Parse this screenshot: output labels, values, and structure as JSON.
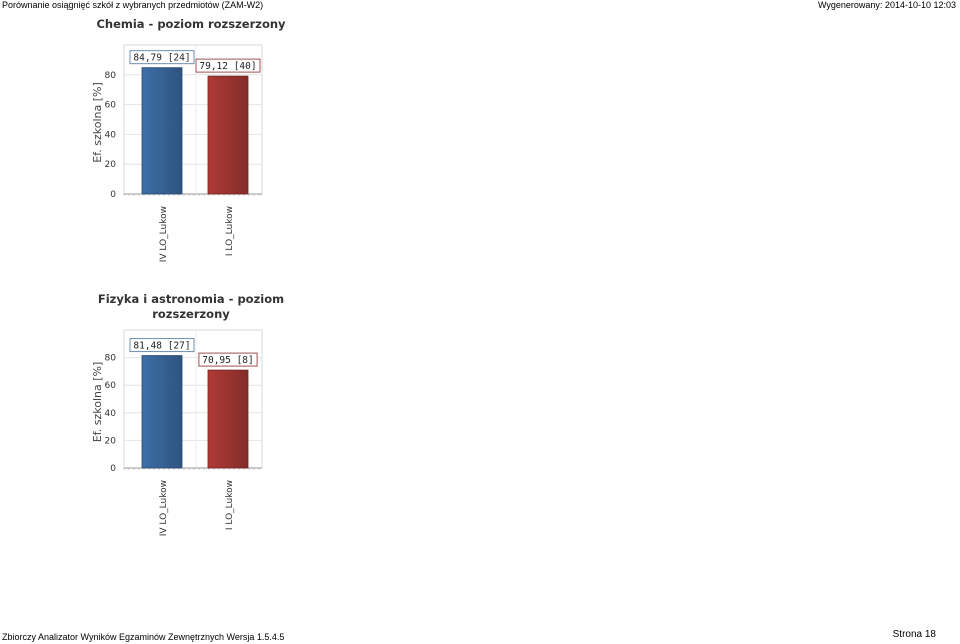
{
  "header": {
    "left": "Porównanie osiągnięć szkół z wybranych przedmiotów (ZAM-W2)",
    "right": "Wygenerowany: 2014-10-10 12:03"
  },
  "footer": {
    "left": "Zbiorczy Analizator Wyników Egzaminów Zewnętrznych Wersja 1.5.4.5",
    "right": "Strona 18"
  },
  "colors": {
    "series_blue": "#3e6fa8",
    "series_red": "#b03a36",
    "label_blue_border": "#6f8fb0",
    "label_red_border": "#a05050"
  },
  "chart_data": [
    {
      "type": "bar",
      "title": [
        "Chemia - poziom rozszerzony"
      ],
      "ylabel": "Ef. szkolna [%]",
      "xlabel": "",
      "categories": [
        "IV LO_Lukow",
        "I LO_Lukow"
      ],
      "values": [
        84.79,
        79.12
      ],
      "data_labels": [
        "84,79 [24]",
        "79,12 [40]"
      ],
      "bar_colors": [
        "#3e6fa8",
        "#b03a36"
      ],
      "yticks": [
        0,
        20,
        40,
        60,
        80
      ],
      "ylim": [
        0,
        100
      ],
      "grid": true
    },
    {
      "type": "bar",
      "title": [
        "Fizyka i astronomia - poziom",
        "rozszerzony"
      ],
      "ylabel": "Ef. szkolna [%]",
      "xlabel": "",
      "categories": [
        "IV LO_Lukow",
        "I LO_Lukow"
      ],
      "values": [
        81.48,
        70.95
      ],
      "data_labels": [
        "81,48 [27]",
        "70,95 [8]"
      ],
      "bar_colors": [
        "#3e6fa8",
        "#b03a36"
      ],
      "yticks": [
        0,
        20,
        40,
        60,
        80
      ],
      "ylim": [
        0,
        100
      ],
      "grid": true
    }
  ]
}
